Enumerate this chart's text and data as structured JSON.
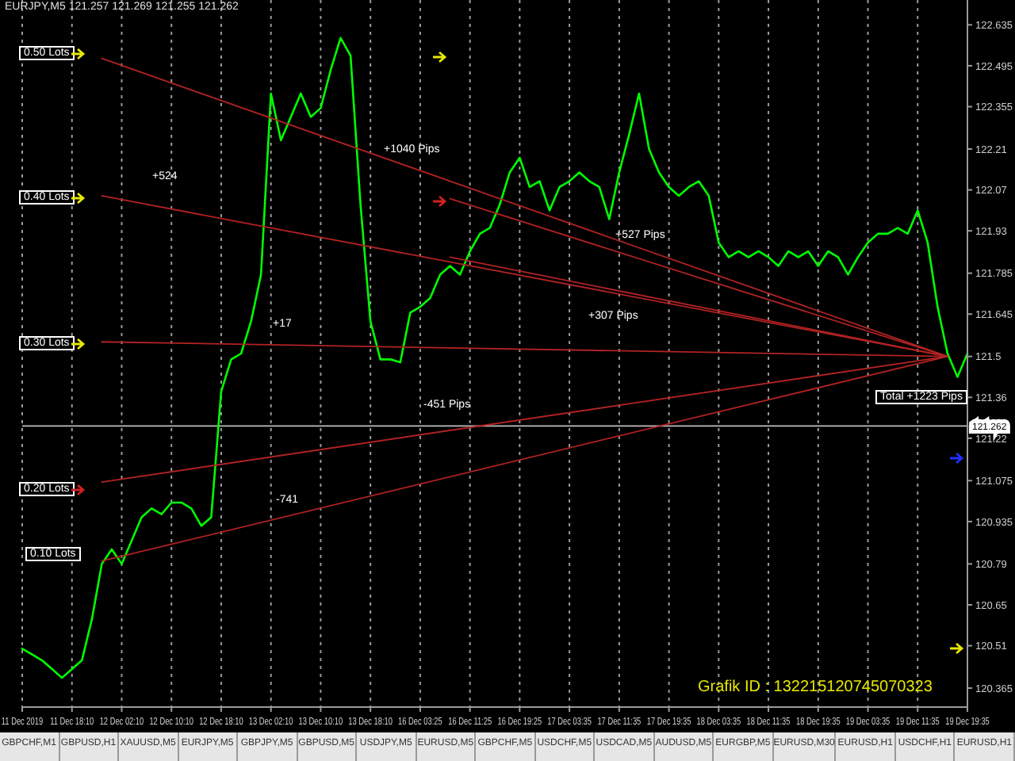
{
  "chart_data": {
    "type": "line",
    "title": "EURJPY,M5  121.257 121.269 121.255 121.262",
    "categories": [
      "11 Dec 2019",
      null,
      null,
      null,
      null,
      "11 Dec 18:10",
      null,
      null,
      null,
      null,
      "12 Dec 02:10",
      null,
      null,
      null,
      null,
      "12 Dec 10:10",
      null,
      null,
      null,
      null,
      "12 Dec 18:10",
      null,
      null,
      null,
      null,
      "13 Dec 02:10",
      null,
      null,
      null,
      null,
      "13 Dec 10:10",
      null,
      null,
      null,
      null,
      "13 Dec 18:10",
      null,
      null,
      null,
      null,
      "16 Dec 03:25",
      null,
      null,
      null,
      null,
      "16 Dec 11:25",
      null,
      null,
      null,
      null,
      "16 Dec 19:25",
      null,
      null,
      null,
      null,
      "17 Dec 03:35",
      null,
      null,
      null,
      null,
      "17 Dec 11:35",
      null,
      null,
      null,
      null,
      "17 Dec 19:35",
      null,
      null,
      null,
      null,
      "18 Dec 03:35",
      null,
      null,
      null,
      null,
      "18 Dec 11:35",
      null,
      null,
      null,
      null,
      "18 Dec 19:35",
      null,
      null,
      null,
      null,
      "19 Dec 03:35",
      null,
      null,
      null,
      null,
      "19 Dec 11:35",
      null,
      null,
      null,
      null,
      "19 Dec 19:35"
    ],
    "series": [
      {
        "color": "#00ff00",
        "values": [
          120.5,
          120.48,
          120.46,
          120.43,
          120.4,
          120.43,
          120.46,
          120.6,
          120.79,
          120.84,
          120.79,
          120.87,
          120.95,
          120.98,
          120.96,
          121.0,
          121.0,
          120.98,
          120.92,
          120.95,
          121.38,
          121.49,
          121.51,
          121.62,
          121.78,
          122.4,
          122.24,
          122.32,
          122.4,
          122.32,
          122.35,
          122.48,
          122.59,
          122.53,
          122.02,
          121.62,
          121.49,
          121.49,
          121.48,
          121.65,
          121.67,
          121.7,
          121.78,
          121.81,
          121.78,
          121.86,
          121.92,
          121.94,
          122.02,
          122.13,
          122.18,
          122.08,
          122.1,
          122.0,
          122.08,
          122.1,
          122.13,
          122.1,
          122.08,
          121.97,
          122.13,
          122.26,
          122.4,
          122.21,
          122.13,
          122.08,
          122.05,
          122.08,
          122.1,
          122.05,
          121.89,
          121.84,
          121.86,
          121.84,
          121.86,
          121.84,
          121.81,
          121.86,
          121.84,
          121.86,
          121.81,
          121.86,
          121.84,
          121.78,
          121.84,
          121.89,
          121.92,
          121.92,
          121.94,
          121.92,
          122.0,
          121.89,
          121.67,
          121.51,
          121.43,
          121.51
        ]
      },
      {
        "type": "line",
        "color": "#b22222",
        "values": [
          null,
          null,
          null,
          null,
          null,
          null,
          null,
          null,
          122.52,
          null,
          null,
          null,
          null,
          null,
          null,
          null,
          null,
          null,
          null,
          null,
          null,
          null,
          null,
          null,
          null,
          null,
          null,
          null,
          null,
          null,
          null,
          null,
          null,
          null,
          null,
          null,
          null,
          null,
          null,
          null,
          null,
          null,
          null,
          null,
          null,
          null,
          null,
          null,
          null,
          null,
          null,
          null,
          null,
          null,
          null,
          null,
          null,
          null,
          null,
          null,
          null,
          null,
          null,
          null,
          null,
          null,
          null,
          null,
          null,
          null,
          null,
          null,
          null,
          null,
          null,
          null,
          null,
          null,
          null,
          null,
          null,
          null,
          null,
          null,
          null,
          null,
          null,
          null,
          null,
          null,
          null,
          null,
          null,
          121.5,
          null,
          null
        ]
      },
      {
        "type": "line",
        "color": "#b22222",
        "values": [
          null,
          null,
          null,
          null,
          null,
          null,
          null,
          null,
          122.05,
          null,
          null,
          null,
          null,
          null,
          null,
          null,
          null,
          null,
          null,
          null,
          null,
          null,
          null,
          null,
          null,
          null,
          null,
          null,
          null,
          null,
          null,
          null,
          null,
          null,
          null,
          null,
          null,
          null,
          null,
          null,
          null,
          null,
          null,
          null,
          null,
          null,
          null,
          null,
          null,
          null,
          null,
          null,
          null,
          null,
          null,
          null,
          null,
          null,
          null,
          null,
          null,
          null,
          null,
          null,
          null,
          null,
          null,
          null,
          null,
          null,
          null,
          null,
          null,
          null,
          null,
          null,
          null,
          null,
          null,
          null,
          null,
          null,
          null,
          null,
          null,
          null,
          null,
          null,
          null,
          null,
          null,
          null,
          null,
          121.5,
          null,
          null
        ]
      },
      {
        "type": "line",
        "color": "#b22222",
        "values": [
          null,
          null,
          null,
          null,
          null,
          null,
          null,
          null,
          121.55,
          null,
          null,
          null,
          null,
          null,
          null,
          null,
          null,
          null,
          null,
          null,
          null,
          null,
          null,
          null,
          null,
          null,
          null,
          null,
          null,
          null,
          null,
          null,
          null,
          null,
          null,
          null,
          null,
          null,
          null,
          null,
          null,
          null,
          null,
          null,
          null,
          null,
          null,
          null,
          null,
          null,
          null,
          null,
          null,
          null,
          null,
          null,
          null,
          null,
          null,
          null,
          null,
          null,
          null,
          null,
          null,
          null,
          null,
          null,
          null,
          null,
          null,
          null,
          null,
          null,
          null,
          null,
          null,
          null,
          null,
          null,
          null,
          null,
          null,
          null,
          null,
          null,
          null,
          null,
          null,
          null,
          null,
          null,
          null,
          121.5,
          null,
          null
        ]
      },
      {
        "type": "line",
        "color": "#b22222",
        "values": [
          null,
          null,
          null,
          null,
          null,
          null,
          null,
          null,
          121.07,
          null,
          null,
          null,
          null,
          null,
          null,
          null,
          null,
          null,
          null,
          null,
          null,
          null,
          null,
          null,
          null,
          null,
          null,
          null,
          null,
          null,
          null,
          null,
          null,
          null,
          null,
          null,
          null,
          null,
          null,
          null,
          null,
          null,
          null,
          null,
          null,
          null,
          null,
          null,
          null,
          null,
          null,
          null,
          null,
          null,
          null,
          null,
          null,
          null,
          null,
          null,
          null,
          null,
          null,
          null,
          null,
          null,
          null,
          null,
          null,
          null,
          null,
          null,
          null,
          null,
          null,
          null,
          null,
          null,
          null,
          null,
          null,
          null,
          null,
          null,
          null,
          null,
          null,
          null,
          null,
          null,
          null,
          null,
          null,
          121.5,
          null,
          null
        ]
      },
      {
        "type": "line",
        "color": "#b22222",
        "values": [
          null,
          null,
          null,
          null,
          null,
          null,
          null,
          null,
          120.8,
          null,
          null,
          null,
          null,
          null,
          null,
          null,
          null,
          null,
          null,
          null,
          null,
          null,
          null,
          null,
          null,
          null,
          null,
          null,
          null,
          null,
          null,
          null,
          null,
          null,
          null,
          null,
          null,
          null,
          null,
          null,
          null,
          null,
          null,
          null,
          null,
          null,
          null,
          null,
          null,
          null,
          null,
          null,
          null,
          null,
          null,
          null,
          null,
          null,
          null,
          null,
          null,
          null,
          null,
          null,
          null,
          null,
          null,
          null,
          null,
          null,
          null,
          null,
          null,
          null,
          null,
          null,
          null,
          null,
          null,
          null,
          null,
          null,
          null,
          null,
          null,
          null,
          null,
          null,
          null,
          null,
          null,
          null,
          null,
          121.5,
          null,
          null
        ]
      },
      {
        "type": "line",
        "color": "#b22222",
        "values": [
          null,
          null,
          null,
          null,
          null,
          null,
          null,
          null,
          null,
          null,
          null,
          null,
          null,
          null,
          null,
          null,
          null,
          null,
          null,
          null,
          null,
          null,
          null,
          null,
          null,
          null,
          null,
          null,
          null,
          null,
          null,
          null,
          null,
          null,
          null,
          null,
          null,
          null,
          null,
          null,
          null,
          null,
          null,
          122.04,
          null,
          null,
          null,
          null,
          null,
          null,
          null,
          null,
          null,
          null,
          null,
          null,
          null,
          null,
          null,
          null,
          null,
          null,
          null,
          null,
          null,
          null,
          null,
          null,
          null,
          null,
          null,
          null,
          null,
          null,
          null,
          null,
          null,
          null,
          null,
          null,
          null,
          null,
          null,
          null,
          null,
          null,
          null,
          null,
          null,
          null,
          null,
          null,
          null,
          121.5,
          null,
          null
        ]
      },
      {
        "type": "line",
        "color": "#b22222",
        "values": [
          null,
          null,
          null,
          null,
          null,
          null,
          null,
          null,
          null,
          null,
          null,
          null,
          null,
          null,
          null,
          null,
          null,
          null,
          null,
          null,
          null,
          null,
          null,
          null,
          null,
          null,
          null,
          null,
          null,
          null,
          null,
          null,
          null,
          null,
          null,
          null,
          null,
          null,
          null,
          null,
          null,
          null,
          null,
          121.84,
          null,
          null,
          null,
          null,
          null,
          null,
          null,
          null,
          null,
          null,
          null,
          null,
          null,
          null,
          null,
          null,
          null,
          null,
          null,
          null,
          null,
          null,
          null,
          null,
          null,
          null,
          null,
          null,
          null,
          null,
          null,
          null,
          null,
          null,
          null,
          null,
          null,
          null,
          null,
          null,
          null,
          null,
          null,
          null,
          null,
          null,
          null,
          null,
          null,
          121.5,
          null,
          null
        ]
      }
    ],
    "ylim": [
      120.3,
      122.72
    ],
    "yticks": [
      122.635,
      122.495,
      122.355,
      122.21,
      122.07,
      121.93,
      121.785,
      121.645,
      121.5,
      121.36,
      121.22,
      121.075,
      120.935,
      120.79,
      120.65,
      120.51,
      120.365
    ],
    "grid": "x",
    "ref_lines": [
      {
        "axis": "y",
        "value": 121.262,
        "label": "121.262",
        "color": "#c0c0c0"
      }
    ],
    "annotations": [
      "0.50 Lots",
      "0.40 Lots",
      "0.30 Lots",
      "0.20 Lots",
      "0.10 Lots",
      "+524",
      "+1040 Pips",
      "+527 Pips",
      "+17",
      "+307 Pips",
      "-451 Pips",
      "-741",
      "Total +1223 Pips",
      "Grafik ID : 132215120745070323",
      "GBPCHF,M1",
      "GBPUSD,H1",
      "XAUUSD,M5",
      "EURJPY,M5",
      "GBPJPY,M5",
      "GBPUSD,M5",
      "USDJPY,M5",
      "EURUSD,M5",
      "GBPCHF,M5",
      "USDCHF,M5",
      "USDCAD,M5",
      "AUDUSD,M5",
      "EURGBP,M5",
      "EURUSD,M30",
      "EURUSD,H1",
      "USDCHF,H1",
      "EURUSD,H1"
    ]
  }
}
